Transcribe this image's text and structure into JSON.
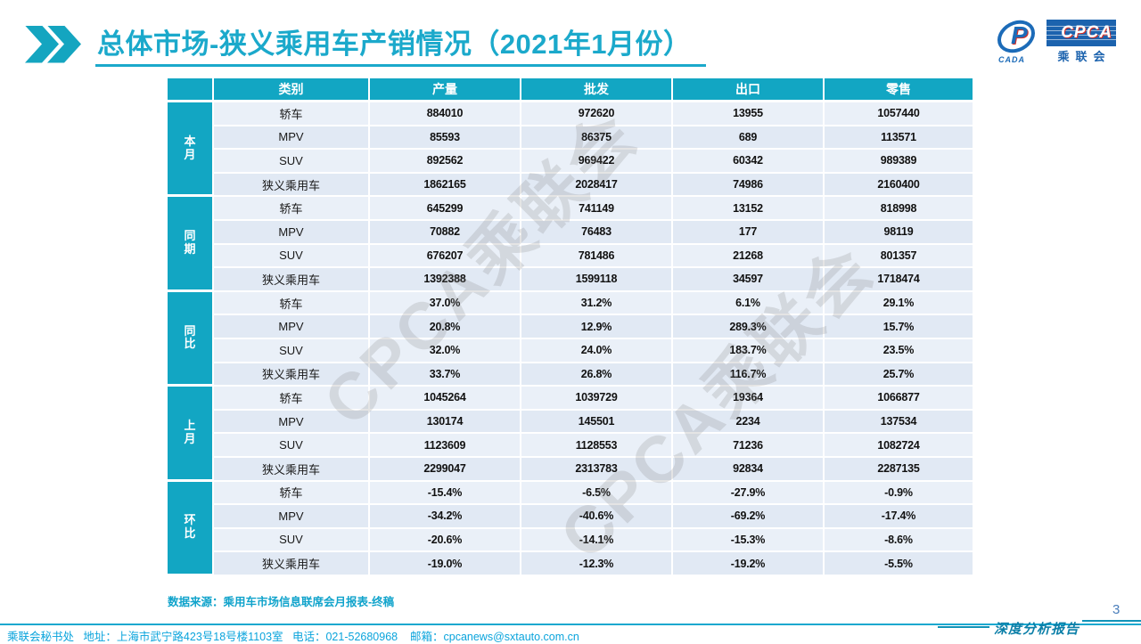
{
  "slide": {
    "title": "总体市场-狭义乘用车产销情况（2021年1月份）",
    "watermark": "CPCA乘联会",
    "source_note": "数据来源：乘用车市场信息联席会月报表-终稿",
    "footer": "乘联会秘书处   地址：上海市武宁路423号18号楼1103室   电话：021-52680968    邮箱：cpcanews@sxtauto.com.cn",
    "report_label": "深度分析报告",
    "page_number": "3"
  },
  "logo": {
    "main": "CPCA",
    "small": "CADA",
    "subtitle": "乘联会",
    "glyph": "P"
  },
  "colors": {
    "teal_header": "#12A6C3",
    "title_cyan": "#1BA9CB",
    "row_light": "#EAF0F8",
    "row_dark": "#E1E9F4",
    "footer_cyan": "#0AA4DC",
    "report_teal": "#0C7FA8",
    "page_number_blue": "#4A7EBB",
    "logo_blue": "#1C63AE",
    "logo_red": "#D42E26"
  },
  "chart_data": {
    "type": "table",
    "title": "总体市场-狭义乘用车产销情况（2021年1月份）",
    "columns": [
      "类别",
      "产量",
      "批发",
      "出口",
      "零售"
    ],
    "groups": [
      {
        "label": "本月",
        "rows": [
          {
            "category": "轿车",
            "values": [
              "884010",
              "972620",
              "13955",
              "1057440"
            ]
          },
          {
            "category": "MPV",
            "values": [
              "85593",
              "86375",
              "689",
              "113571"
            ]
          },
          {
            "category": "SUV",
            "values": [
              "892562",
              "969422",
              "60342",
              "989389"
            ]
          },
          {
            "category": "狭义乘用车",
            "values": [
              "1862165",
              "2028417",
              "74986",
              "2160400"
            ]
          }
        ]
      },
      {
        "label": "同期",
        "rows": [
          {
            "category": "轿车",
            "values": [
              "645299",
              "741149",
              "13152",
              "818998"
            ]
          },
          {
            "category": "MPV",
            "values": [
              "70882",
              "76483",
              "177",
              "98119"
            ]
          },
          {
            "category": "SUV",
            "values": [
              "676207",
              "781486",
              "21268",
              "801357"
            ]
          },
          {
            "category": "狭义乘用车",
            "values": [
              "1392388",
              "1599118",
              "34597",
              "1718474"
            ]
          }
        ]
      },
      {
        "label": "同比",
        "rows": [
          {
            "category": "轿车",
            "values": [
              "37.0%",
              "31.2%",
              "6.1%",
              "29.1%"
            ]
          },
          {
            "category": "MPV",
            "values": [
              "20.8%",
              "12.9%",
              "289.3%",
              "15.7%"
            ]
          },
          {
            "category": "SUV",
            "values": [
              "32.0%",
              "24.0%",
              "183.7%",
              "23.5%"
            ]
          },
          {
            "category": "狭义乘用车",
            "values": [
              "33.7%",
              "26.8%",
              "116.7%",
              "25.7%"
            ]
          }
        ]
      },
      {
        "label": "上月",
        "rows": [
          {
            "category": "轿车",
            "values": [
              "1045264",
              "1039729",
              "19364",
              "1066877"
            ]
          },
          {
            "category": "MPV",
            "values": [
              "130174",
              "145501",
              "2234",
              "137534"
            ]
          },
          {
            "category": "SUV",
            "values": [
              "1123609",
              "1128553",
              "71236",
              "1082724"
            ]
          },
          {
            "category": "狭义乘用车",
            "values": [
              "2299047",
              "2313783",
              "92834",
              "2287135"
            ]
          }
        ]
      },
      {
        "label": "环比",
        "rows": [
          {
            "category": "轿车",
            "values": [
              "-15.4%",
              "-6.5%",
              "-27.9%",
              "-0.9%"
            ]
          },
          {
            "category": "MPV",
            "values": [
              "-34.2%",
              "-40.6%",
              "-69.2%",
              "-17.4%"
            ]
          },
          {
            "category": "SUV",
            "values": [
              "-20.6%",
              "-14.1%",
              "-15.3%",
              "-8.6%"
            ]
          },
          {
            "category": "狭义乘用车",
            "values": [
              "-19.0%",
              "-12.3%",
              "-19.2%",
              "-5.5%"
            ]
          }
        ]
      }
    ]
  }
}
